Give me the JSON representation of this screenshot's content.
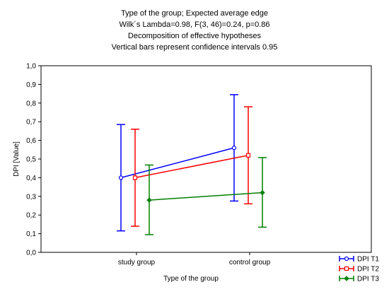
{
  "chart_data": {
    "type": "line",
    "title_lines": [
      "Type of the group; Expected average edge",
      "Wilk´s Lambda=0.98, F(3, 46)=0.24, p=0.86",
      "Decomposition of effective hypotheses",
      "Vertical bars represent confidence intervals 0.95"
    ],
    "xlabel": "Type of the group",
    "ylabel": "DPI [Value]",
    "categories": [
      "study group",
      "control group"
    ],
    "ylim": [
      0,
      1
    ],
    "yticks": [
      "0,0",
      "0,1",
      "0,2",
      "0,3",
      "0,4",
      "0,5",
      "0,6",
      "0,7",
      "0,8",
      "0,9",
      "1,0"
    ],
    "grid": false,
    "legend_position": "bottom-right",
    "series": [
      {
        "name": "DPI T1",
        "color": "#0000ff",
        "marker": "circle",
        "values": [
          0.4,
          0.56
        ],
        "ci_low": [
          0.115,
          0.275
        ],
        "ci_high": [
          0.685,
          0.845
        ]
      },
      {
        "name": "DPI T2",
        "color": "#ff0000",
        "marker": "square",
        "values": [
          0.4,
          0.52
        ],
        "ci_low": [
          0.14,
          0.26
        ],
        "ci_high": [
          0.66,
          0.78
        ]
      },
      {
        "name": "DPI T3",
        "color": "#008000",
        "marker": "diamond",
        "values": [
          0.28,
          0.32
        ],
        "ci_low": [
          0.095,
          0.135
        ],
        "ci_high": [
          0.468,
          0.508
        ]
      }
    ]
  }
}
